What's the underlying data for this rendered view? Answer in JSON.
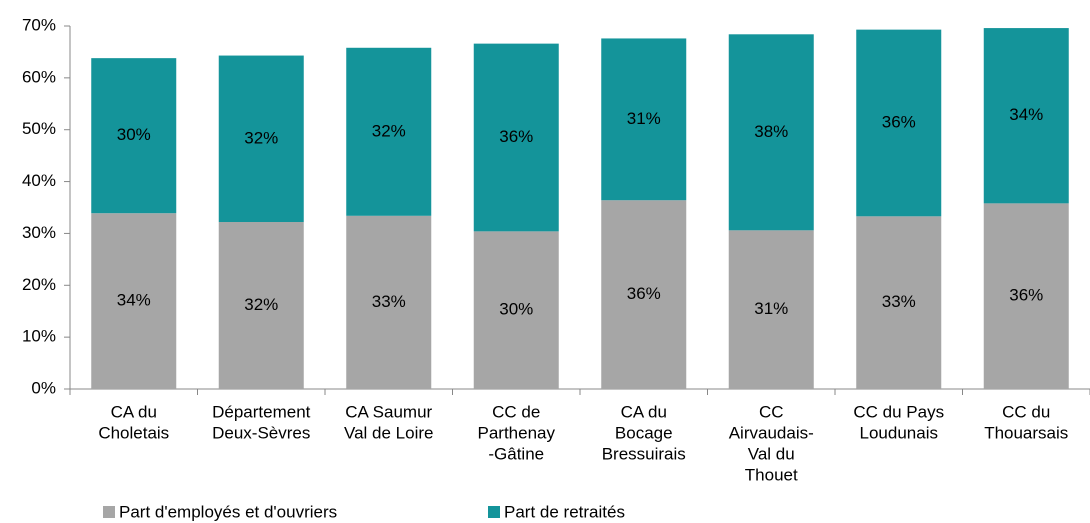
{
  "chart_data": {
    "type": "stacked_bar",
    "categories": [
      [
        "CA du",
        "Choletais"
      ],
      [
        "Département",
        "Deux-Sèvres"
      ],
      [
        "CA Saumur",
        "Val de Loire"
      ],
      [
        "CC de",
        "Parthenay",
        "-Gâtine"
      ],
      [
        "CA du",
        "Bocage",
        "Bressuirais"
      ],
      [
        "CC",
        "Airvaudais-",
        "Val du",
        "Thouet"
      ],
      [
        "CC du Pays",
        "Loudunais"
      ],
      [
        "CC du",
        "Thouarsais"
      ]
    ],
    "series": [
      {
        "name": "Part d'employés et d'ouvriers",
        "color": "#a6a6a6",
        "values": [
          33.9,
          32.2,
          33.4,
          30.4,
          36.4,
          30.6,
          33.3,
          35.8
        ],
        "value_labels": [
          "34%",
          "32%",
          "33%",
          "30%",
          "36%",
          "31%",
          "33%",
          "36%"
        ]
      },
      {
        "name": "Part de retraités",
        "color": "#14949a",
        "values": [
          29.9,
          32.1,
          32.4,
          36.2,
          31.2,
          37.8,
          36.0,
          33.8
        ],
        "value_labels": [
          "30%",
          "32%",
          "32%",
          "36%",
          "31%",
          "38%",
          "36%",
          "34%"
        ]
      }
    ],
    "ylim": [
      0,
      70
    ],
    "yticks": [
      {
        "value": 0,
        "label": "0%"
      },
      {
        "value": 10,
        "label": "10%"
      },
      {
        "value": 20,
        "label": "20%"
      },
      {
        "value": 30,
        "label": "30%"
      },
      {
        "value": 40,
        "label": "40%"
      },
      {
        "value": 50,
        "label": "50%"
      },
      {
        "value": 60,
        "label": "60%"
      },
      {
        "value": 70,
        "label": "70%"
      }
    ],
    "legend": "bottom"
  }
}
